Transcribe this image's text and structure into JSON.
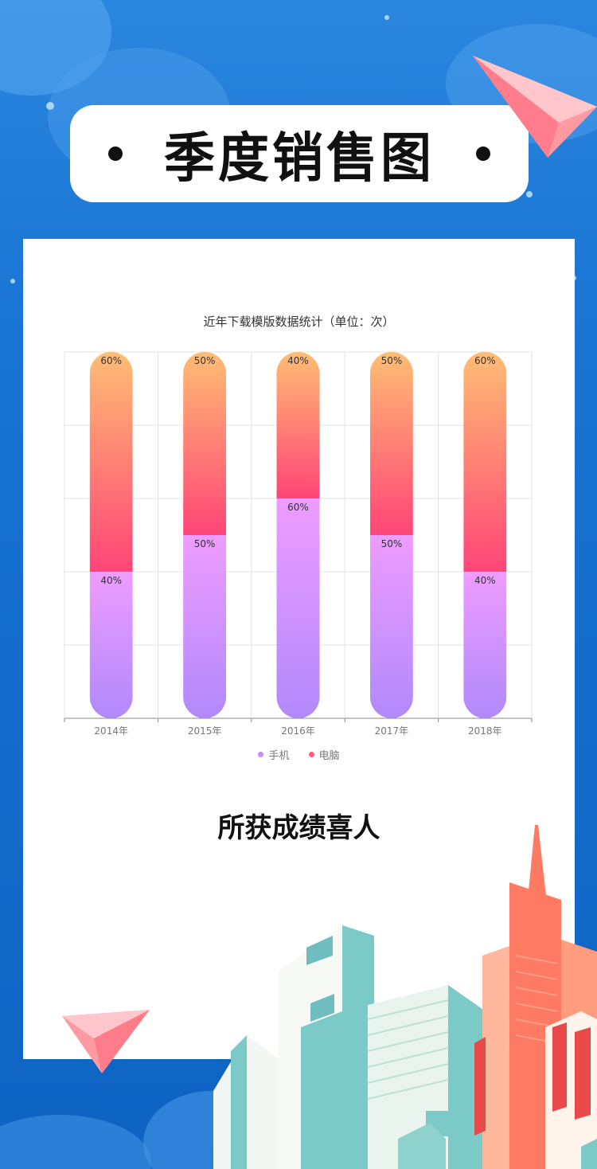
{
  "header": {
    "title": "季度销售图"
  },
  "chart_data": {
    "type": "bar",
    "stacked": true,
    "title": "近年下载模版数据统计（单位：次）",
    "categories": [
      "2014年",
      "2015年",
      "2016年",
      "2017年",
      "2018年"
    ],
    "series": [
      {
        "name": "手机",
        "values": [
          40,
          50,
          60,
          50,
          40
        ],
        "labels": [
          "40%",
          "50%",
          "60%",
          "50%",
          "40%"
        ],
        "color": "#c58cf5"
      },
      {
        "name": "电脑",
        "values": [
          60,
          50,
          40,
          50,
          60
        ],
        "labels": [
          "60%",
          "50%",
          "40%",
          "50%",
          "60%"
        ],
        "color": "#ff5d7b"
      }
    ],
    "ylim": [
      0,
      100
    ],
    "grid": true,
    "legend_position": "bottom"
  },
  "section": {
    "subheading": "所获成绩喜人"
  },
  "colors": {
    "background": "#1873d3",
    "phone_gradient_top": "#ee9cff",
    "phone_gradient_bottom": "#b189fb",
    "pc_gradient_top": "#ffbd73",
    "pc_gradient_bottom": "#ff4577"
  }
}
